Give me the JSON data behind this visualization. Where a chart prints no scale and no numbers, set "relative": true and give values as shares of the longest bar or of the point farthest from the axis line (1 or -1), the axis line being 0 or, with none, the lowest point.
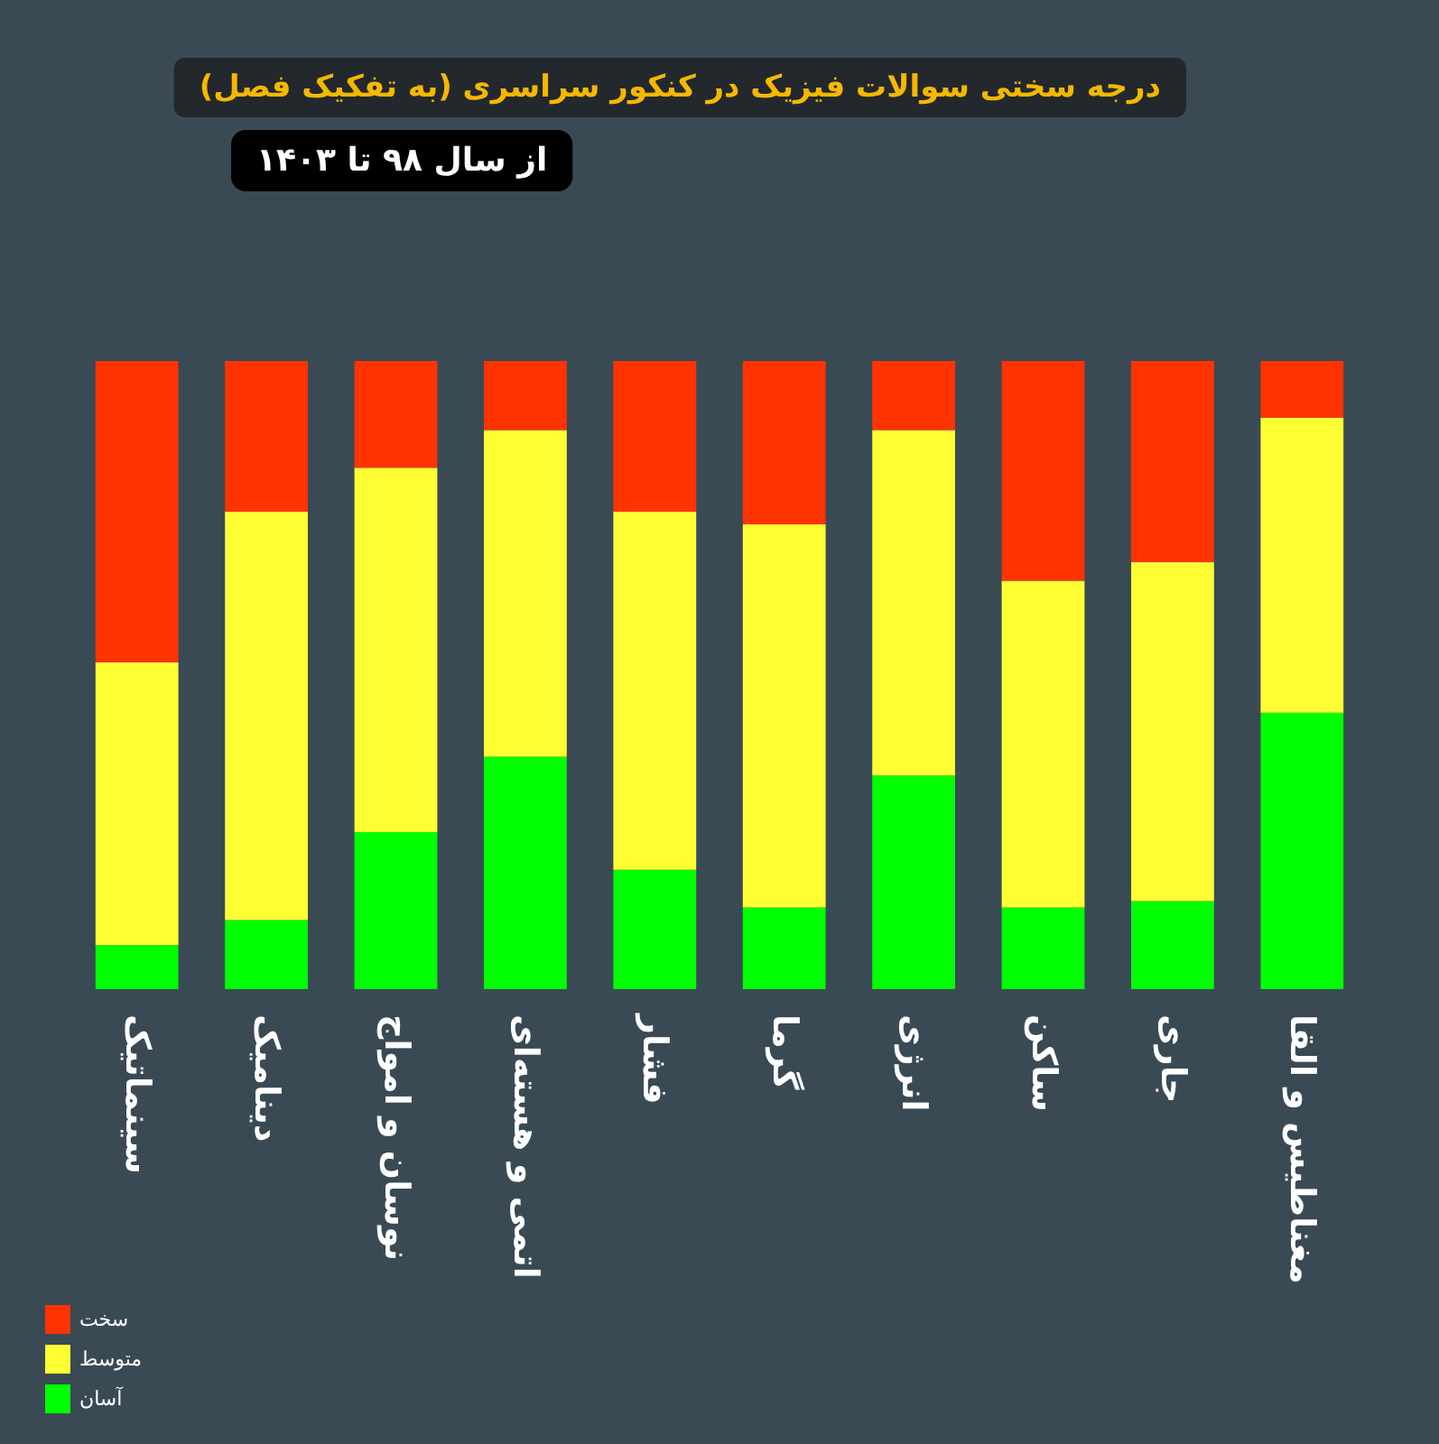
{
  "chart_data": {
    "type": "bar",
    "title": "درجه سختی سوالات فیزیک در کنکور سراسری (به تفکیک فصل)",
    "subtitle": "از سال ۹۸ تا ۱۴۰۳",
    "relative": true,
    "stacked": true,
    "legend": "bottom left",
    "categories": [
      "سینماتیک",
      "دینامیک",
      "نوسان و امواج",
      "اتمی و هسته‌ای",
      "فشار",
      "گرما",
      "انرژی",
      "ساکن",
      "جاری",
      "مغناطیس و القا"
    ],
    "series": [
      {
        "name": "آسان",
        "color": "#00ff00",
        "values": [
          0.07,
          0.11,
          0.25,
          0.37,
          0.19,
          0.13,
          0.34,
          0.13,
          0.14,
          0.44
        ]
      },
      {
        "name": "متوسط",
        "color": "#ffff33",
        "values": [
          0.45,
          0.65,
          0.58,
          0.52,
          0.57,
          0.61,
          0.55,
          0.52,
          0.54,
          0.47
        ]
      },
      {
        "name": "سخت",
        "color": "#ff3300",
        "values": [
          0.48,
          0.24,
          0.17,
          0.11,
          0.24,
          0.26,
          0.11,
          0.35,
          0.32,
          0.09
        ]
      }
    ]
  }
}
